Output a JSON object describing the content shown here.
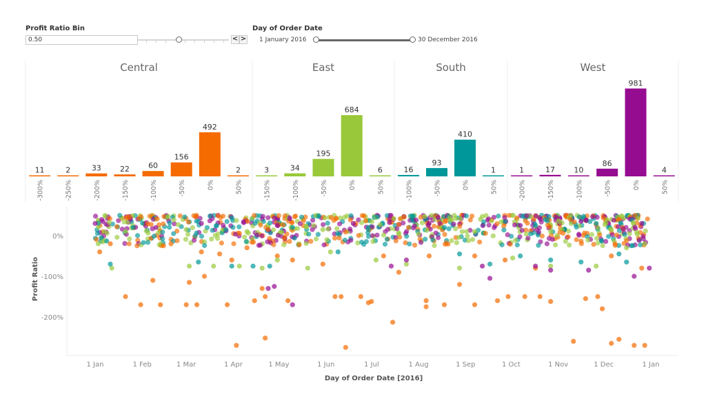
{
  "filters": {
    "profit_ratio_bin": {
      "title": "Profit Ratio Bin",
      "value": "0.50",
      "prev_label": "<",
      "next_label": ">",
      "slider_position": 0.45
    },
    "day_of_order_date": {
      "title": "Day of Order Date",
      "start_label": "1 January 2016",
      "end_label": "30 December 2016"
    }
  },
  "colors": {
    "Central": "#f56b00",
    "East": "#99c93a",
    "South": "#00979a",
    "West": "#950c91"
  },
  "chart_data": [
    {
      "type": "bar",
      "title": "Order count by Profit Ratio Bin per Region",
      "panels": [
        {
          "region": "Central",
          "categories": [
            "-300%",
            "-250%",
            "-200%",
            "-150%",
            "-100%",
            "-50%",
            "0%",
            "50%"
          ],
          "values": [
            11,
            2,
            33,
            22,
            60,
            156,
            492,
            2
          ]
        },
        {
          "region": "East",
          "categories": [
            "-150%",
            "-100%",
            "-50%",
            "0%",
            "50%"
          ],
          "values": [
            3,
            34,
            195,
            684,
            6
          ]
        },
        {
          "region": "South",
          "categories": [
            "-100%",
            "-50%",
            "0%",
            "50%"
          ],
          "values": [
            16,
            93,
            410,
            1
          ]
        },
        {
          "region": "West",
          "categories": [
            "-200%",
            "-150%",
            "-100%",
            "-50%",
            "0%",
            "50%"
          ],
          "values": [
            1,
            17,
            10,
            86,
            981,
            4
          ]
        }
      ],
      "ylim": [
        0,
        1000
      ]
    },
    {
      "type": "scatter",
      "title": "Profit Ratio by Day of Order Date",
      "xlabel": "Day of Order Date [2016]",
      "ylabel": "Profit Ratio",
      "x_ticks": [
        "1 Jan",
        "1 Feb",
        "1 Mar",
        "1 Apr",
        "1 May",
        "1 Jun",
        "1 Jul",
        "1 Aug",
        "1 Sep",
        "1 Oct",
        "1 Nov",
        "1 Dec",
        "1 Jan"
      ],
      "y_ticks": [
        "0%",
        "-100%",
        "-200%"
      ],
      "xlim": [
        "2016-01-01",
        "2017-01-01"
      ],
      "ylim": [
        -0.3,
        0.55
      ],
      "series": [
        {
          "name": "Central",
          "points": [
            [
              3,
              -0.4
            ],
            [
              20,
              -1.5
            ],
            [
              38,
              -1.1
            ],
            [
              30,
              -1.7
            ],
            [
              43,
              -1.7
            ],
            [
              60,
              -1.7
            ],
            [
              67,
              -1.7
            ],
            [
              62,
              -1.15
            ],
            [
              72,
              -1.0
            ],
            [
              82,
              -0.45
            ],
            [
              87,
              -1.7
            ],
            [
              93,
              -2.7
            ],
            [
              105,
              -1.6
            ],
            [
              110,
              -1.3
            ],
            [
              112,
              -1.5
            ],
            [
              112,
              -2.52
            ],
            [
              127,
              -1.6
            ],
            [
              158,
              -1.5
            ],
            [
              162,
              -1.5
            ],
            [
              165,
              -2.75
            ],
            [
              175,
              -1.5
            ],
            [
              180,
              -1.65
            ],
            [
              182,
              -1.62
            ],
            [
              196,
              -2.13
            ],
            [
              200,
              -0.9
            ],
            [
              218,
              -1.6
            ],
            [
              218,
              -1.75
            ],
            [
              230,
              -1.7
            ],
            [
              250,
              -1.7
            ],
            [
              265,
              -1.6
            ],
            [
              272,
              -1.5
            ],
            [
              283,
              -1.5
            ],
            [
              293,
              -1.5
            ],
            [
              300,
              -1.62
            ],
            [
              315,
              -2.6
            ],
            [
              323,
              -1.55
            ],
            [
              331,
              -1.5
            ],
            [
              334,
              -1.8
            ],
            [
              340,
              -2.65
            ],
            [
              345,
              -2.55
            ],
            [
              355,
              -2.7
            ],
            [
              362,
              -2.7
            ],
            [
              360,
              -0.8
            ],
            [
              340,
              -0.5
            ],
            [
              290,
              -0.8
            ],
            [
              270,
              -0.6
            ],
            [
              250,
              -0.5
            ],
            [
              240,
              -1.2
            ],
            [
              220,
              -0.5
            ],
            [
              190,
              -0.5
            ],
            [
              150,
              -0.7
            ],
            [
              130,
              -0.6
            ],
            [
              120,
              -0.5
            ],
            [
              100,
              -0.3
            ],
            [
              90,
              -0.6
            ],
            [
              70,
              -0.4
            ],
            [
              50,
              -0.2
            ],
            [
              45,
              -0.25
            ],
            [
              10,
              -0.2
            ]
          ]
        },
        {
          "name": "East",
          "points": [
            [
              2,
              -0.2
            ],
            [
              11,
              -0.8
            ],
            [
              62,
              -0.75
            ],
            [
              78,
              -0.75
            ],
            [
              95,
              -0.75
            ],
            [
              110,
              -0.8
            ],
            [
              120,
              -0.6
            ],
            [
              140,
              -0.8
            ],
            [
              155,
              -0.4
            ],
            [
              185,
              -0.6
            ],
            [
              205,
              -0.7
            ],
            [
              240,
              -0.8
            ],
            [
              275,
              -0.55
            ],
            [
              300,
              -0.75
            ],
            [
              330,
              -0.75
            ],
            [
              350,
              -0.3
            ],
            [
              362,
              -0.2
            ],
            [
              20,
              0.1
            ],
            [
              60,
              0.15
            ],
            [
              100,
              0.1
            ],
            [
              150,
              0.15
            ],
            [
              200,
              0.05
            ],
            [
              250,
              0.1
            ],
            [
              300,
              0.1
            ],
            [
              340,
              0.15
            ]
          ]
        },
        {
          "name": "South",
          "points": [
            [
              4,
              -0.05
            ],
            [
              10,
              -0.7
            ],
            [
              68,
              -0.65
            ],
            [
              90,
              -0.75
            ],
            [
              104,
              -0.75
            ],
            [
              115,
              -0.75
            ],
            [
              160,
              -0.4
            ],
            [
              240,
              -0.45
            ],
            [
              260,
              -0.7
            ],
            [
              280,
              -0.5
            ],
            [
              300,
              -0.6
            ],
            [
              320,
              -0.65
            ],
            [
              345,
              -0.45
            ],
            [
              350,
              -0.65
            ],
            [
              25,
              0.2
            ],
            [
              80,
              0.25
            ],
            [
              130,
              0.2
            ],
            [
              180,
              0.15
            ],
            [
              230,
              0.2
            ],
            [
              290,
              0.25
            ],
            [
              330,
              0.3
            ]
          ]
        },
        {
          "name": "West",
          "points": [
            [
              0,
              0.3
            ],
            [
              5,
              0.35
            ],
            [
              40,
              0.2
            ],
            [
              114,
              -1.3
            ],
            [
              118,
              -1.25
            ],
            [
              130,
              -1.7
            ],
            [
              195,
              -0.75
            ],
            [
              205,
              -0.6
            ],
            [
              255,
              -0.75
            ],
            [
              260,
              -1.05
            ],
            [
              290,
              -0.75
            ],
            [
              300,
              -0.85
            ],
            [
              325,
              -0.85
            ],
            [
              355,
              -1.0
            ],
            [
              365,
              -0.8
            ],
            [
              70,
              0.3
            ],
            [
              120,
              0.25
            ],
            [
              170,
              0.3
            ],
            [
              220,
              0.3
            ],
            [
              280,
              0.25
            ],
            [
              320,
              0.35
            ],
            [
              360,
              0.3
            ]
          ]
        }
      ]
    }
  ]
}
